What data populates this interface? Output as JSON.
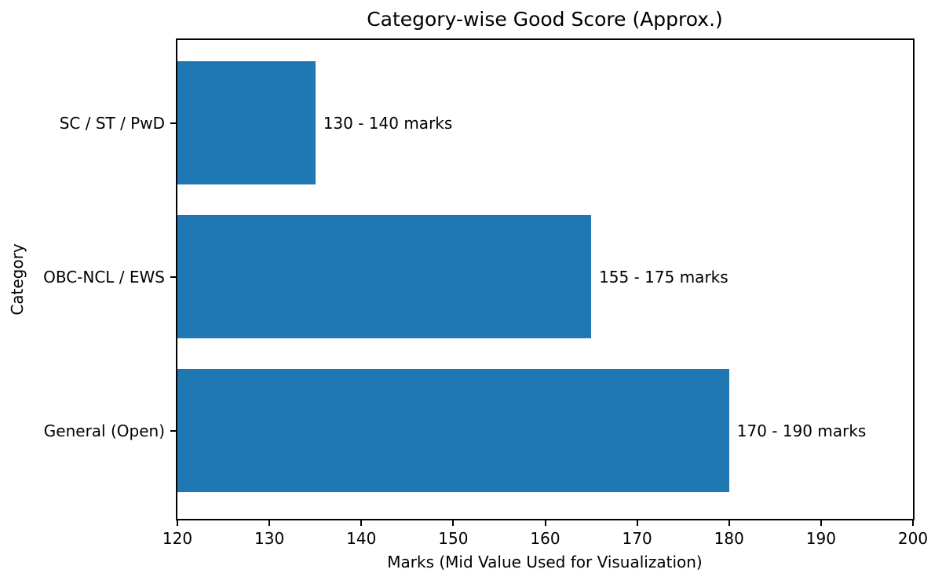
{
  "chart_data": {
    "type": "bar",
    "orientation": "horizontal",
    "title": "Category-wise Good Score (Approx.)",
    "xlabel": "Marks (Mid Value Used for Visualization)",
    "ylabel": "Category",
    "categories": [
      "SC / ST / PwD",
      "OBC-NCL / EWS",
      "General (Open)"
    ],
    "values": [
      135,
      165,
      180
    ],
    "ranges": [
      [
        130,
        140
      ],
      [
        155,
        175
      ],
      [
        170,
        190
      ]
    ],
    "annotations": [
      "130 - 140 marks",
      "155 - 175 marks",
      "170 - 190 marks"
    ],
    "xlim": [
      120,
      200
    ],
    "xticks": [
      120,
      130,
      140,
      150,
      160,
      170,
      180,
      190,
      200
    ],
    "bar_color": "#1f77b4",
    "axes_color": "#000000",
    "background_color": "#ffffff",
    "grid": false,
    "legend": null
  }
}
